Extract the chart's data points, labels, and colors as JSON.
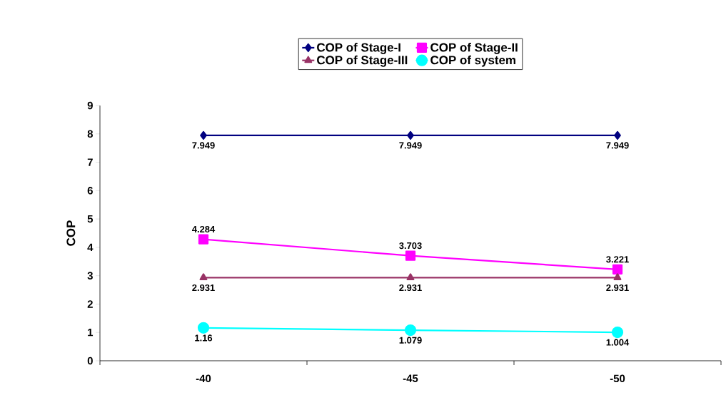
{
  "chart_data": {
    "type": "line",
    "categories": [
      "-40",
      "-45",
      "-50"
    ],
    "ylabel": "COP",
    "ylim": [
      0,
      9
    ],
    "yticks": [
      0,
      1,
      2,
      3,
      4,
      5,
      6,
      7,
      8,
      9
    ],
    "legend": "top",
    "grid": false,
    "series": [
      {
        "name": "COP of Stage-I",
        "color": "#000080",
        "marker": "diamond",
        "values": [
          7.949,
          7.949,
          7.949
        ],
        "value_labels": [
          "7.949",
          "7.949",
          "7.949"
        ]
      },
      {
        "name": "COP of Stage-II",
        "color": "#ff00ff",
        "marker": "square",
        "values": [
          4.284,
          3.703,
          3.221
        ],
        "value_labels": [
          "4.284",
          "3.703",
          "3.221"
        ]
      },
      {
        "name": "COP of Stage-III",
        "color": "#993366",
        "marker": "triangle",
        "values": [
          2.931,
          2.931,
          2.931
        ],
        "value_labels": [
          "2.931",
          "2.931",
          "2.931"
        ]
      },
      {
        "name": "COP of system",
        "color": "#00ffff",
        "marker": "circle",
        "values": [
          1.16,
          1.079,
          1.004
        ],
        "value_labels": [
          "1.16",
          "1.079",
          "1.004"
        ]
      }
    ]
  }
}
